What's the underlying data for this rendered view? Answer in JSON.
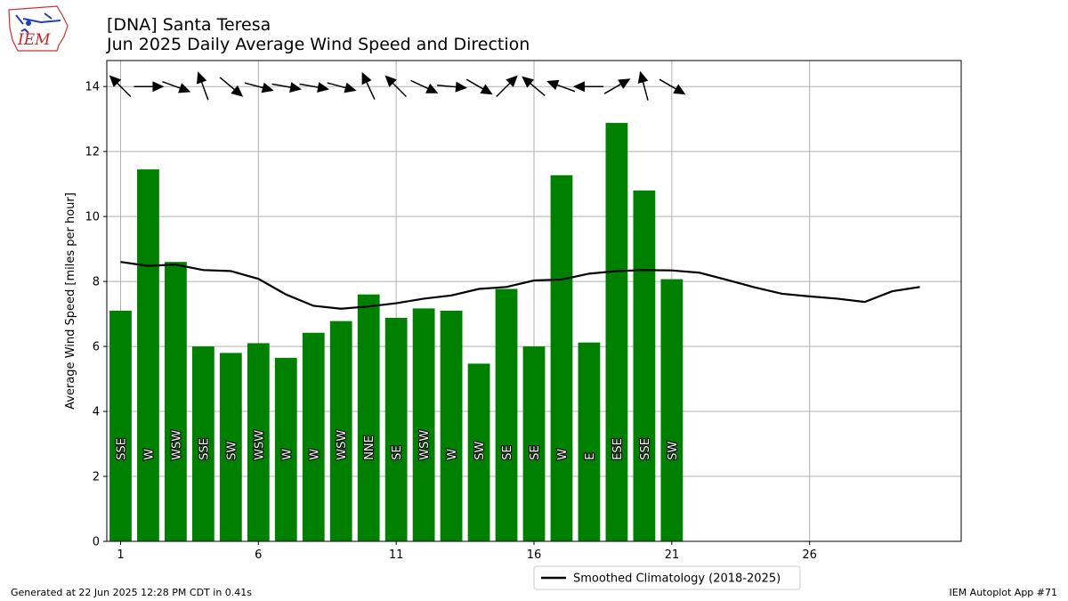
{
  "header": {
    "logo_text": "IEM",
    "title_line1": "[DNA] Santa Teresa",
    "title_line2": "Jun 2025 Daily Average Wind Speed and Direction"
  },
  "chart_data": {
    "type": "bar",
    "xlabel": "",
    "ylabel": "Average Wind Speed [miles per hour]",
    "xlim": [
      0.5,
      31.5
    ],
    "ylim": [
      0,
      14.8
    ],
    "x_ticks": [
      1,
      6,
      11,
      16,
      21,
      26
    ],
    "y_ticks": [
      0,
      2,
      4,
      6,
      8,
      10,
      12,
      14
    ],
    "grid": true,
    "bar_color": "#008000",
    "days": [
      1,
      2,
      3,
      4,
      5,
      6,
      7,
      8,
      9,
      10,
      11,
      12,
      13,
      14,
      15,
      16,
      17,
      18,
      19,
      20,
      21
    ],
    "values": [
      7.1,
      11.45,
      8.6,
      6.0,
      5.8,
      6.1,
      5.65,
      6.42,
      6.78,
      7.6,
      6.88,
      7.17,
      7.1,
      5.47,
      7.77,
      6.0,
      11.27,
      6.12,
      12.88,
      10.8,
      8.07
    ],
    "directions": [
      "SSE",
      "W",
      "WSW",
      "SSE",
      "SW",
      "WSW",
      "W",
      "W",
      "WSW",
      "NNE",
      "SE",
      "WSW",
      "W",
      "SW",
      "SE",
      "SE",
      "W",
      "E",
      "ESE",
      "SSE",
      "SW"
    ],
    "arrow_angles_deg": [
      -135,
      0,
      20,
      -110,
      40,
      15,
      10,
      10,
      15,
      -115,
      -135,
      25,
      5,
      30,
      -45,
      -140,
      -160,
      180,
      -30,
      -105,
      30
    ],
    "arrow_y": 14,
    "series": [
      {
        "name": "Smoothed Climatology (2018-2025)",
        "color": "#000000",
        "x": [
          1,
          2,
          3,
          4,
          5,
          6,
          7,
          8,
          9,
          10,
          11,
          12,
          13,
          14,
          15,
          16,
          17,
          18,
          19,
          20,
          21,
          22,
          23,
          24,
          25,
          26,
          27,
          28,
          29,
          30
        ],
        "values": [
          8.6,
          8.48,
          8.52,
          8.35,
          8.32,
          8.08,
          7.6,
          7.25,
          7.16,
          7.23,
          7.33,
          7.47,
          7.57,
          7.77,
          7.83,
          8.03,
          8.06,
          8.24,
          8.32,
          8.35,
          8.34,
          8.27,
          8.05,
          7.82,
          7.62,
          7.54,
          7.47,
          7.37,
          7.7,
          7.83
        ]
      }
    ],
    "legend_position": "bottom-center"
  },
  "footer": {
    "generated": "Generated at 22 Jun 2025 12:28 PM CDT in 0.41s",
    "app": "IEM Autoplot App #71"
  }
}
